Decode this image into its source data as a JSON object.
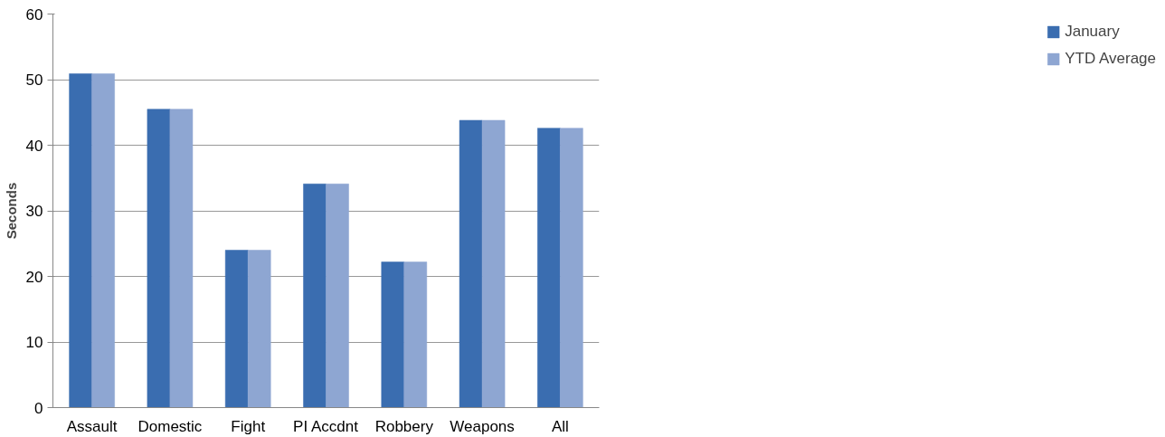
{
  "chart_data": {
    "type": "bar",
    "ylabel": "Seconds",
    "categories": [
      "Assault",
      "Domestic",
      "Fight",
      "PI Accdnt",
      "Robbery",
      "Weapons",
      "All"
    ],
    "series": [
      {
        "name": "January",
        "color": "#3a6db0",
        "values": [
          50.9,
          45.5,
          24.0,
          34.1,
          22.2,
          43.8,
          42.6
        ]
      },
      {
        "name": "YTD Average",
        "color": "#8ea6d2",
        "values": [
          50.9,
          45.5,
          24.0,
          34.1,
          22.2,
          43.8,
          42.6
        ]
      }
    ],
    "ylim": [
      0,
      60
    ],
    "yticks": [
      0,
      10,
      20,
      30,
      40,
      50,
      60
    ],
    "grid": "y",
    "legend": "right"
  }
}
